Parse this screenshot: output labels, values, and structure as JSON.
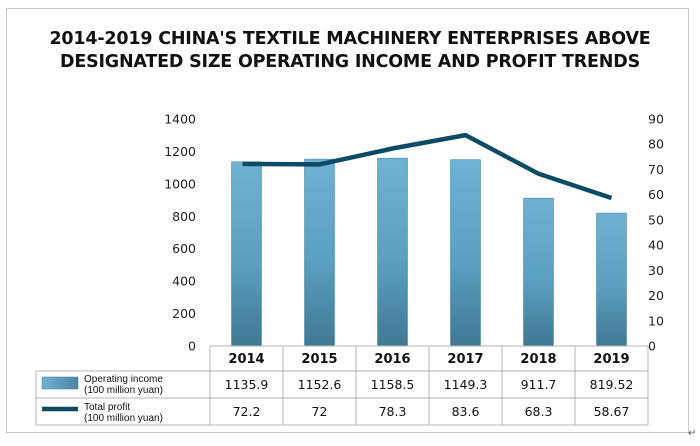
{
  "chart_data": {
    "type": "bar+line",
    "title_line1": "2014-2019 CHINA'S TEXTILE MACHINERY ENTERPRISES ABOVE",
    "title_line2": "DESIGNATED SIZE OPERATING INCOME AND PROFIT TRENDS",
    "categories": [
      "2014",
      "2015",
      "2016",
      "2017",
      "2018",
      "2019"
    ],
    "left_axis": {
      "ylim": [
        0,
        1400
      ],
      "ticks": [
        "0",
        "200",
        "400",
        "600",
        "800",
        "1000",
        "1200",
        "1400"
      ]
    },
    "right_axis": {
      "ylim": [
        0,
        90
      ],
      "ticks": [
        "0",
        "10",
        "20",
        "30",
        "40",
        "50",
        "60",
        "70",
        "80",
        "90"
      ]
    },
    "series": [
      {
        "name_line1": "Operating income",
        "name_line2": "(100 million yuan)",
        "kind": "bar",
        "axis": "left",
        "values": [
          1135.9,
          1152.6,
          1158.5,
          1149.3,
          911.7,
          819.52
        ],
        "labels": [
          "1135.9",
          "1152.6",
          "1158.5",
          "1149.3",
          "911.7",
          "819.52"
        ],
        "color": "#5ba3c7"
      },
      {
        "name_line1": "Total profit",
        "name_line2": "(100 million yuan)",
        "kind": "line",
        "axis": "right",
        "values": [
          72.2,
          72,
          78.3,
          83.6,
          68.3,
          58.67
        ],
        "labels": [
          "72.2",
          "72",
          "78.3",
          "83.6",
          "68.3",
          "58.67"
        ],
        "color": "#0d4a66"
      }
    ],
    "grid": false,
    "legend": "data-table-below"
  },
  "corner_mark": "↵"
}
